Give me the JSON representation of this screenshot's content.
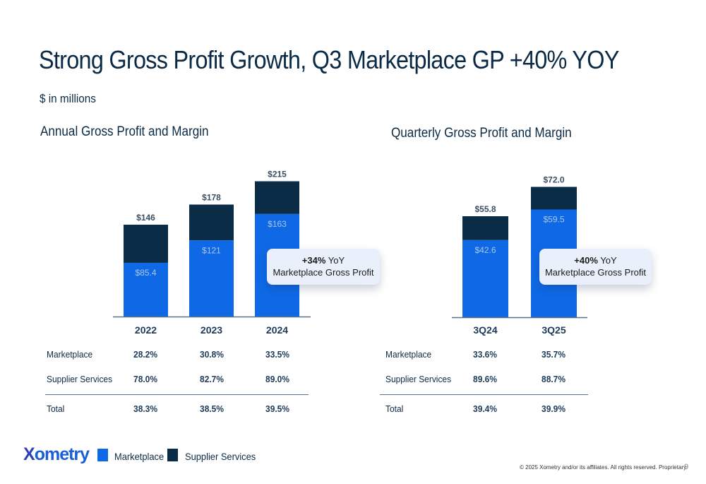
{
  "slide": {
    "title": "Strong Gross Profit Growth, Q3 Marketplace GP +40% YOY",
    "subtitle": "$ in millions",
    "page_number": "9",
    "footer": "© 2025  Xometry and/or its affiliates. All rights reserved. Proprietary.",
    "logo_text": "ometry",
    "logo_x": "X"
  },
  "colors": {
    "marketplace": "#0f69e6",
    "supplier_services": "#0a2c46",
    "axis": "#5b7088"
  },
  "legend": {
    "marketplace": "Marketplace",
    "supplier_services": "Supplier Services"
  },
  "annual": {
    "title": "Annual Gross Profit and Margin",
    "callout_bold": "+34%",
    "callout_suffix": " YoY",
    "callout_line2": "Marketplace Gross Profit",
    "table": {
      "rows": [
        {
          "label": "Marketplace",
          "values": [
            "28.2%",
            "30.8%",
            "33.5%"
          ]
        },
        {
          "label": "Supplier Services",
          "values": [
            "78.0%",
            "82.7%",
            "89.0%"
          ]
        },
        {
          "label": "Total",
          "values": [
            "38.3%",
            "38.5%",
            "39.5%"
          ]
        }
      ]
    }
  },
  "quarterly": {
    "title": "Quarterly Gross Profit and Margin",
    "callout_bold": "+40%",
    "callout_suffix": " YoY",
    "callout_line2": "Marketplace Gross Profit",
    "table": {
      "rows": [
        {
          "label": "Marketplace",
          "values": [
            "33.6%",
            "35.7%"
          ]
        },
        {
          "label": "Supplier Services",
          "values": [
            "89.6%",
            "88.7%"
          ]
        },
        {
          "label": "Total",
          "values": [
            "39.4%",
            "39.9%"
          ]
        }
      ]
    }
  },
  "chart_data": [
    {
      "type": "bar",
      "stacked": true,
      "title": "Annual Gross Profit and Margin",
      "categories": [
        "2022",
        "2023",
        "2024"
      ],
      "series": [
        {
          "name": "Marketplace",
          "values": [
            85.4,
            121,
            163
          ],
          "labels": [
            "$85.4",
            "$121",
            "$163"
          ]
        },
        {
          "name": "Supplier Services",
          "values": [
            60.6,
            57,
            52
          ]
        }
      ],
      "totals": [
        146,
        178,
        215
      ],
      "total_labels": [
        "$146",
        "$178",
        "$215"
      ],
      "xlabel": "",
      "ylabel": "$ in millions",
      "ylim": [
        0,
        215
      ],
      "grid": false,
      "legend": "bottom-left"
    },
    {
      "type": "bar",
      "stacked": true,
      "title": "Quarterly Gross Profit and Margin",
      "categories": [
        "3Q24",
        "3Q25"
      ],
      "series": [
        {
          "name": "Marketplace",
          "values": [
            42.6,
            59.5
          ],
          "labels": [
            "$42.6",
            "$59.5"
          ]
        },
        {
          "name": "Supplier Services",
          "values": [
            13.2,
            12.5
          ]
        }
      ],
      "totals": [
        55.8,
        72.0
      ],
      "total_labels": [
        "$55.8",
        "$72.0"
      ],
      "xlabel": "",
      "ylabel": "$ in millions",
      "ylim": [
        0,
        72
      ],
      "grid": false,
      "legend": "bottom-left"
    }
  ]
}
